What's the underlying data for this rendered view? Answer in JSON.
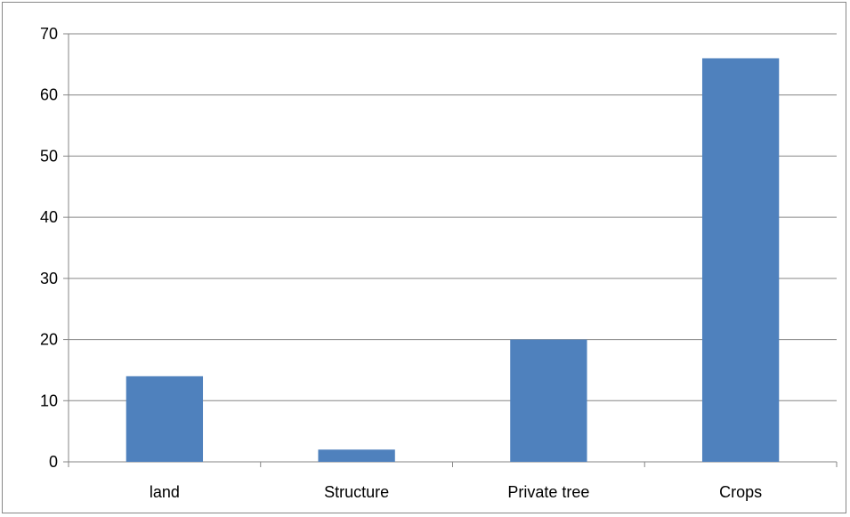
{
  "chart_data": {
    "type": "bar",
    "categories": [
      "land",
      "Structure",
      "Private  tree",
      "Crops"
    ],
    "values": [
      14,
      2,
      20,
      66
    ],
    "title": "",
    "xlabel": "",
    "ylabel": "",
    "ylim": [
      0,
      70
    ],
    "yticks": [
      0,
      10,
      20,
      30,
      40,
      50,
      60,
      70
    ],
    "grid": true,
    "legend": "none",
    "colors": {
      "bar": "#4f81bd",
      "grid": "#868686",
      "axis": "#868686"
    }
  }
}
